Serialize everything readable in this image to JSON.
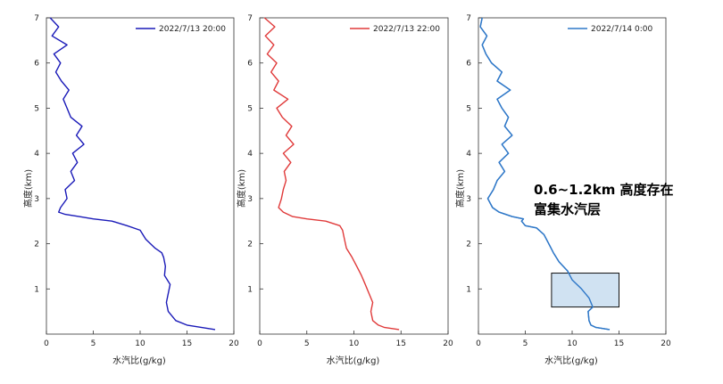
{
  "chart_data": [
    {
      "type": "line",
      "xlabel": "水汽比(g/kg)",
      "ylabel": "高度(km)",
      "xlim": [
        0,
        20
      ],
      "ylim": [
        0,
        7
      ],
      "x_ticks": [
        "0",
        "5",
        "10",
        "15",
        "20"
      ],
      "y_ticks": [
        "1",
        "2",
        "3",
        "4",
        "5",
        "6",
        "7"
      ],
      "legend_position": "top-right",
      "series": [
        {
          "name": "2022/7/13 20:00",
          "color": "#1a1ab8",
          "y": [
            0.1,
            0.15,
            0.2,
            0.3,
            0.5,
            0.7,
            0.9,
            1.1,
            1.3,
            1.5,
            1.7,
            1.8,
            1.9,
            2.1,
            2.3,
            2.4,
            2.5,
            2.55,
            2.6,
            2.65,
            2.7,
            2.8,
            3.0,
            3.2,
            3.4,
            3.6,
            3.8,
            4.0,
            4.2,
            4.4,
            4.6,
            4.8,
            5.0,
            5.2,
            5.4,
            5.6,
            5.8,
            6.0,
            6.2,
            6.4,
            6.6,
            6.8,
            7.0
          ],
          "x": [
            18.0,
            16.5,
            15.0,
            13.8,
            13.0,
            12.8,
            13.0,
            13.2,
            12.6,
            12.7,
            12.5,
            12.3,
            11.6,
            10.6,
            10.0,
            8.6,
            7.0,
            5.0,
            3.5,
            2.0,
            1.3,
            1.5,
            2.2,
            2.0,
            3.0,
            2.6,
            3.3,
            2.8,
            4.0,
            3.2,
            3.8,
            2.6,
            2.2,
            1.8,
            2.4,
            1.6,
            1.0,
            1.5,
            0.8,
            2.2,
            0.6,
            1.3,
            0.4
          ]
        },
        {
          "name": "2022/7/13 22:00",
          "color": "#e03a3a",
          "y": [
            0.1,
            0.15,
            0.2,
            0.3,
            0.5,
            0.7,
            0.9,
            1.1,
            1.3,
            1.5,
            1.7,
            1.9,
            2.1,
            2.3,
            2.4,
            2.5,
            2.55,
            2.6,
            2.7,
            2.8,
            3.0,
            3.2,
            3.4,
            3.6,
            3.8,
            4.0,
            4.2,
            4.4,
            4.6,
            4.8,
            5.0,
            5.2,
            5.4,
            5.6,
            5.8,
            6.0,
            6.2,
            6.4,
            6.6,
            6.8,
            7.0
          ],
          "x": [
            14.8,
            13.2,
            12.6,
            12.0,
            11.8,
            12.0,
            11.6,
            11.2,
            10.8,
            10.3,
            9.8,
            9.2,
            9.0,
            8.8,
            8.5,
            7.0,
            5.0,
            3.5,
            2.5,
            2.0,
            2.3,
            2.5,
            2.8,
            2.6,
            3.3,
            2.5,
            3.6,
            2.8,
            3.4,
            2.4,
            1.8,
            3.0,
            1.5,
            2.0,
            1.2,
            1.8,
            0.8,
            1.5,
            0.6,
            1.6,
            0.5
          ]
        },
        {
          "name": "2022/7/14 0:00",
          "color": "#2f78c8",
          "y": [
            0.1,
            0.15,
            0.2,
            0.3,
            0.5,
            0.6,
            0.8,
            1.0,
            1.2,
            1.4,
            1.6,
            1.8,
            2.0,
            2.2,
            2.35,
            2.4,
            2.5,
            2.55,
            2.6,
            2.7,
            2.8,
            3.0,
            3.2,
            3.4,
            3.6,
            3.8,
            4.0,
            4.2,
            4.4,
            4.6,
            4.8,
            5.0,
            5.2,
            5.4,
            5.6,
            5.8,
            6.0,
            6.2,
            6.4,
            6.6,
            6.8,
            7.0
          ],
          "x": [
            14.0,
            12.5,
            12.0,
            11.8,
            11.7,
            12.2,
            11.8,
            11.0,
            10.0,
            9.5,
            8.6,
            8.0,
            7.5,
            7.0,
            6.2,
            5.0,
            4.6,
            4.8,
            3.6,
            2.2,
            1.5,
            1.0,
            1.6,
            2.0,
            2.8,
            2.2,
            3.2,
            2.5,
            3.6,
            2.8,
            3.2,
            2.5,
            2.0,
            3.4,
            2.0,
            2.5,
            1.4,
            0.8,
            0.4,
            0.9,
            0.2,
            0.4
          ]
        }
      ],
      "annotation": {
        "text_line1": "0.6~1.2km 高度存在",
        "text_line2": "富集水汽层",
        "panel": 3,
        "box_x_range": [
          7.8,
          15.0
        ],
        "box_y_range": [
          0.6,
          1.35
        ],
        "box_fill": "#c8ddf0"
      }
    }
  ]
}
